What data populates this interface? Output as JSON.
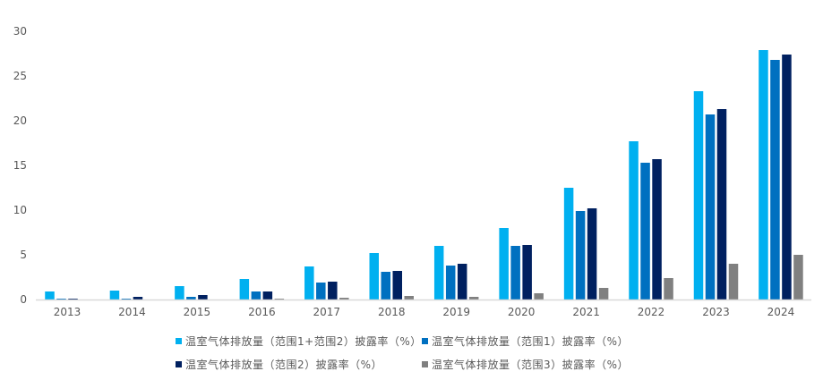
{
  "chart_data": {
    "type": "bar",
    "categories": [
      "2013",
      "2014",
      "2015",
      "2016",
      "2017",
      "2018",
      "2019",
      "2020",
      "2021",
      "2022",
      "2023",
      "2024"
    ],
    "series": [
      {
        "name": "温室气体排放量（范围1+范围2）披露率（%）",
        "color": "#00B0F0",
        "values": [
          0.9,
          1.0,
          1.5,
          2.3,
          3.7,
          5.2,
          6.0,
          8.0,
          12.5,
          17.7,
          23.3,
          27.9
        ]
      },
      {
        "name": "温室气体排放量（范围1）披露率（%）",
        "color": "#0070C0",
        "values": [
          0.1,
          0.1,
          0.3,
          0.9,
          1.9,
          3.1,
          3.8,
          6.0,
          9.9,
          15.3,
          20.7,
          26.8
        ]
      },
      {
        "name": "温室气体排放量（范围2）披露率（%）",
        "color": "#002060",
        "values": [
          0.1,
          0.3,
          0.5,
          0.9,
          2.0,
          3.2,
          4.0,
          6.1,
          10.2,
          15.7,
          21.3,
          27.4
        ]
      },
      {
        "name": "温室气体排放量（范围3）披露率（%）",
        "color": "#808080",
        "values": [
          0,
          0,
          0,
          0.05,
          0.2,
          0.4,
          0.3,
          0.7,
          1.3,
          2.4,
          4.0,
          5.0
        ]
      }
    ],
    "yticks": [
      "0",
      "5",
      "10",
      "15",
      "20",
      "25",
      "30"
    ],
    "ylim": [
      0,
      30
    ],
    "grid": false,
    "legend": "bottom"
  }
}
